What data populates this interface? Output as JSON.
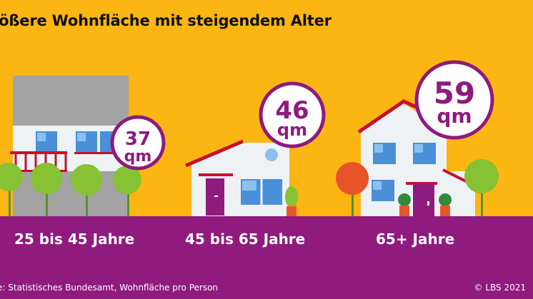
{
  "title": "rößere Wohnfläche mit steigendem Alter",
  "groups": [
    {
      "label": "25 bis 45 Jahre",
      "value": "37",
      "unit": "qm"
    },
    {
      "label": "45 bis 65 Jahre",
      "value": "46",
      "unit": "qm"
    },
    {
      "label": "65+ Jahre",
      "value": "59",
      "unit": "qm"
    }
  ],
  "footer": {
    "source": "e: Statistisches Bundesamt, Wohnfläche pro Person",
    "copyright": "© LBS 2021"
  },
  "colors": {
    "background": "#fbb613",
    "band": "#8e1b7d",
    "roof": "#c8102e",
    "tree": "#86c232",
    "tree_orange": "#e8542a",
    "wall": "#eef2f5",
    "window": "#4a90d9"
  }
}
